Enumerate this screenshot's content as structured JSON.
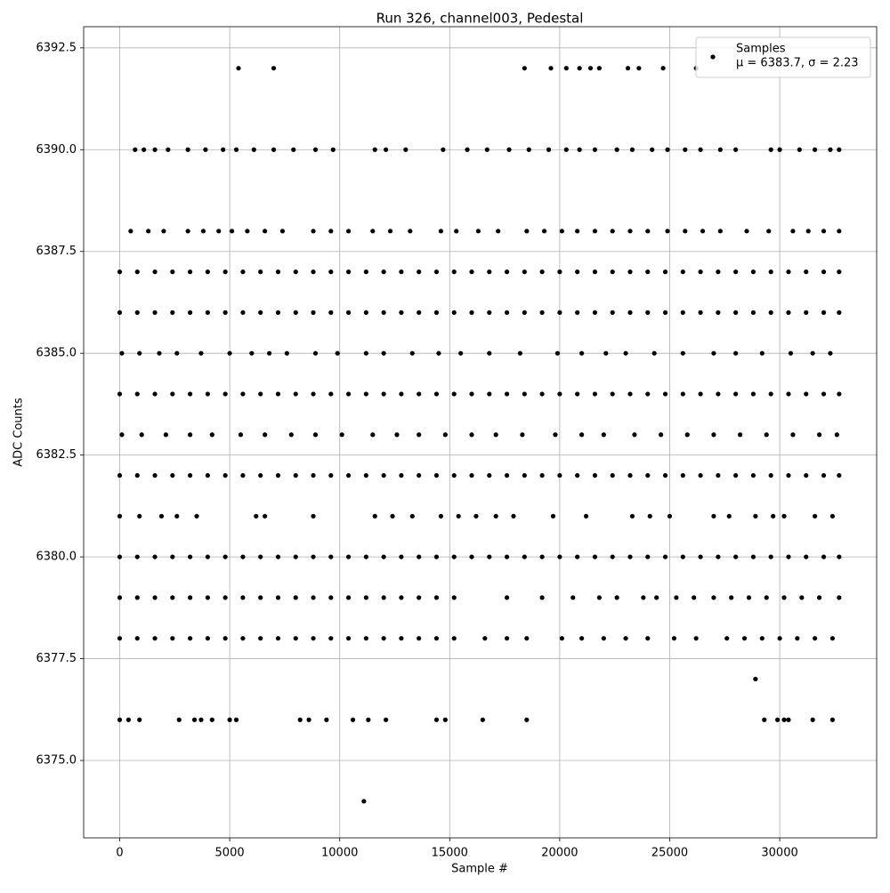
{
  "chart_data": {
    "type": "scatter",
    "title": "Run 326, channel003, Pedestal",
    "x_label": "Sample #",
    "y_label": "ADC Counts",
    "legend_stats": "μ = 6383.7, σ = 2.23",
    "legend_position": "upper right",
    "grid": true,
    "xlim": [
      -1638,
      34406
    ],
    "ylim": [
      6373.1,
      6393.02
    ],
    "xticks": [
      0,
      5000,
      10000,
      15000,
      20000,
      25000,
      30000
    ],
    "yticks": [
      {
        "value": 6375,
        "label": "6375.0"
      },
      6377.5,
      {
        "value": 6380,
        "label": "6380.0"
      },
      6382.5,
      {
        "value": 6385,
        "label": "6385.0"
      },
      6387.5,
      {
        "value": 6390,
        "label": "6390.0"
      },
      6392.5
    ],
    "series": [
      {
        "name": "Samples",
        "color": "#000000",
        "x": [
          5400,
          7000,
          18400,
          19600,
          20300,
          20900,
          21400,
          21800,
          23100,
          23600,
          24700,
          26200,
          700,
          1100,
          1600,
          2200,
          3100,
          3900,
          4700,
          5300,
          6100,
          7000,
          7900,
          8900,
          9700,
          11600,
          12100,
          13000,
          14700,
          15800,
          16700,
          17700,
          18600,
          19500,
          20300,
          20900,
          21600,
          22600,
          23300,
          24200,
          24900,
          25700,
          26400,
          27300,
          28000,
          29600,
          30000,
          30900,
          31600,
          32300,
          32700,
          500,
          1300,
          2000,
          3100,
          3800,
          4500,
          5100,
          5800,
          6600,
          7400,
          8800,
          9600,
          10400,
          11500,
          12300,
          13200,
          14600,
          15300,
          16300,
          17200,
          18500,
          19300,
          20100,
          20800,
          21600,
          22400,
          23200,
          24000,
          24900,
          25700,
          26500,
          27300,
          28500,
          29500,
          30600,
          31300,
          32000,
          32700,
          0,
          800,
          1600,
          2400,
          3200,
          4000,
          4800,
          5600,
          6400,
          7200,
          8000,
          8800,
          9600,
          10400,
          11200,
          12000,
          12800,
          13600,
          14400,
          15200,
          16000,
          16800,
          17600,
          18400,
          19200,
          20000,
          20800,
          21600,
          22400,
          23200,
          24000,
          24800,
          25600,
          26400,
          27200,
          28000,
          28800,
          29600,
          30400,
          31200,
          32000,
          32700,
          0,
          800,
          1600,
          2400,
          3200,
          4000,
          4800,
          5600,
          6400,
          7200,
          8000,
          8800,
          9600,
          10400,
          11200,
          12000,
          12800,
          13600,
          14400,
          15200,
          16000,
          16800,
          17600,
          18400,
          19200,
          20000,
          20800,
          21600,
          22400,
          23200,
          24000,
          24800,
          25600,
          26400,
          27200,
          28000,
          28800,
          29600,
          30400,
          31200,
          32000,
          32700,
          100,
          900,
          1800,
          2600,
          3700,
          5000,
          6000,
          6800,
          7600,
          8900,
          9900,
          11200,
          12000,
          13300,
          14500,
          15500,
          16800,
          18200,
          19900,
          21000,
          22100,
          23000,
          24300,
          25600,
          27000,
          28000,
          29200,
          30500,
          31500,
          32300,
          0,
          800,
          1600,
          2400,
          3200,
          4000,
          4800,
          5600,
          6400,
          7200,
          8000,
          8800,
          9600,
          10400,
          11200,
          12000,
          12800,
          13600,
          14400,
          15200,
          16000,
          16800,
          17600,
          18400,
          19200,
          20000,
          20800,
          21600,
          22400,
          23200,
          24000,
          24800,
          25600,
          26400,
          27200,
          28000,
          28800,
          29600,
          30400,
          31200,
          32000,
          32700,
          100,
          1000,
          2100,
          3200,
          4200,
          5500,
          6600,
          7800,
          8900,
          10100,
          11500,
          12600,
          13600,
          14800,
          16000,
          17100,
          18300,
          19800,
          21000,
          22000,
          23400,
          24600,
          25800,
          27000,
          28200,
          29400,
          30600,
          31800,
          32600,
          0,
          800,
          1600,
          2400,
          3200,
          4000,
          4800,
          5600,
          6400,
          7200,
          8000,
          8800,
          9600,
          10400,
          11200,
          12000,
          12800,
          13600,
          14400,
          15200,
          16000,
          16800,
          17600,
          18400,
          19200,
          20000,
          20800,
          21600,
          22400,
          23200,
          24000,
          24800,
          25600,
          26400,
          27200,
          28000,
          28800,
          29600,
          30400,
          31200,
          32000,
          32700,
          0,
          900,
          1900,
          2600,
          3500,
          6200,
          6600,
          8800,
          11600,
          12400,
          13300,
          14600,
          15400,
          16200,
          17100,
          17900,
          19700,
          21200,
          23300,
          24100,
          25000,
          27000,
          27700,
          28900,
          29700,
          30200,
          31600,
          32400,
          0,
          800,
          1600,
          2400,
          3200,
          4000,
          4800,
          5600,
          6400,
          7200,
          8000,
          8800,
          9600,
          10400,
          11200,
          12000,
          12800,
          13600,
          14400,
          15200,
          16000,
          16800,
          17600,
          18400,
          19200,
          20000,
          20800,
          21600,
          22400,
          23200,
          24000,
          24800,
          25600,
          26400,
          27200,
          28000,
          28800,
          29600,
          30400,
          31200,
          32000,
          32700,
          0,
          800,
          1600,
          2400,
          3200,
          4000,
          4800,
          5600,
          6400,
          7200,
          8000,
          8800,
          9600,
          10400,
          11200,
          12000,
          12800,
          13600,
          14400,
          15200,
          17600,
          19200,
          20600,
          21800,
          22600,
          23800,
          24400,
          25300,
          26100,
          27000,
          27800,
          28600,
          29400,
          30200,
          31000,
          31800,
          32700,
          0,
          800,
          1600,
          2400,
          3200,
          4000,
          4800,
          5600,
          6400,
          7200,
          8000,
          8800,
          9600,
          10400,
          11200,
          12000,
          12800,
          13600,
          14400,
          15200,
          16600,
          17600,
          18500,
          20100,
          21000,
          22000,
          23000,
          24000,
          25200,
          26200,
          27600,
          28400,
          29200,
          30000,
          30800,
          31600,
          32400,
          28900,
          0,
          400,
          900,
          2700,
          3400,
          3700,
          4200,
          5000,
          5300,
          8200,
          8600,
          9400,
          10600,
          11300,
          12100,
          14400,
          14800,
          16500,
          18500,
          29300,
          29900,
          30200,
          30400,
          31500,
          32400,
          11100
        ],
        "values": [
          6392,
          6392,
          6392,
          6392,
          6392,
          6392,
          6392,
          6392,
          6392,
          6392,
          6392,
          6392,
          6390,
          6390,
          6390,
          6390,
          6390,
          6390,
          6390,
          6390,
          6390,
          6390,
          6390,
          6390,
          6390,
          6390,
          6390,
          6390,
          6390,
          6390,
          6390,
          6390,
          6390,
          6390,
          6390,
          6390,
          6390,
          6390,
          6390,
          6390,
          6390,
          6390,
          6390,
          6390,
          6390,
          6390,
          6390,
          6390,
          6390,
          6390,
          6390,
          6388,
          6388,
          6388,
          6388,
          6388,
          6388,
          6388,
          6388,
          6388,
          6388,
          6388,
          6388,
          6388,
          6388,
          6388,
          6388,
          6388,
          6388,
          6388,
          6388,
          6388,
          6388,
          6388,
          6388,
          6388,
          6388,
          6388,
          6388,
          6388,
          6388,
          6388,
          6388,
          6388,
          6388,
          6388,
          6388,
          6388,
          6388,
          6387,
          6387,
          6387,
          6387,
          6387,
          6387,
          6387,
          6387,
          6387,
          6387,
          6387,
          6387,
          6387,
          6387,
          6387,
          6387,
          6387,
          6387,
          6387,
          6387,
          6387,
          6387,
          6387,
          6387,
          6387,
          6387,
          6387,
          6387,
          6387,
          6387,
          6387,
          6387,
          6387,
          6387,
          6387,
          6387,
          6387,
          6387,
          6387,
          6387,
          6387,
          6387,
          6386,
          6386,
          6386,
          6386,
          6386,
          6386,
          6386,
          6386,
          6386,
          6386,
          6386,
          6386,
          6386,
          6386,
          6386,
          6386,
          6386,
          6386,
          6386,
          6386,
          6386,
          6386,
          6386,
          6386,
          6386,
          6386,
          6386,
          6386,
          6386,
          6386,
          6386,
          6386,
          6386,
          6386,
          6386,
          6386,
          6386,
          6386,
          6386,
          6386,
          6386,
          6386,
          6385,
          6385,
          6385,
          6385,
          6385,
          6385,
          6385,
          6385,
          6385,
          6385,
          6385,
          6385,
          6385,
          6385,
          6385,
          6385,
          6385,
          6385,
          6385,
          6385,
          6385,
          6385,
          6385,
          6385,
          6385,
          6385,
          6385,
          6385,
          6385,
          6385,
          6384,
          6384,
          6384,
          6384,
          6384,
          6384,
          6384,
          6384,
          6384,
          6384,
          6384,
          6384,
          6384,
          6384,
          6384,
          6384,
          6384,
          6384,
          6384,
          6384,
          6384,
          6384,
          6384,
          6384,
          6384,
          6384,
          6384,
          6384,
          6384,
          6384,
          6384,
          6384,
          6384,
          6384,
          6384,
          6384,
          6384,
          6384,
          6384,
          6384,
          6384,
          6384,
          6383,
          6383,
          6383,
          6383,
          6383,
          6383,
          6383,
          6383,
          6383,
          6383,
          6383,
          6383,
          6383,
          6383,
          6383,
          6383,
          6383,
          6383,
          6383,
          6383,
          6383,
          6383,
          6383,
          6383,
          6383,
          6383,
          6383,
          6383,
          6383,
          6382,
          6382,
          6382,
          6382,
          6382,
          6382,
          6382,
          6382,
          6382,
          6382,
          6382,
          6382,
          6382,
          6382,
          6382,
          6382,
          6382,
          6382,
          6382,
          6382,
          6382,
          6382,
          6382,
          6382,
          6382,
          6382,
          6382,
          6382,
          6382,
          6382,
          6382,
          6382,
          6382,
          6382,
          6382,
          6382,
          6382,
          6382,
          6382,
          6382,
          6382,
          6382,
          6381,
          6381,
          6381,
          6381,
          6381,
          6381,
          6381,
          6381,
          6381,
          6381,
          6381,
          6381,
          6381,
          6381,
          6381,
          6381,
          6381,
          6381,
          6381,
          6381,
          6381,
          6381,
          6381,
          6381,
          6381,
          6381,
          6381,
          6381,
          6380,
          6380,
          6380,
          6380,
          6380,
          6380,
          6380,
          6380,
          6380,
          6380,
          6380,
          6380,
          6380,
          6380,
          6380,
          6380,
          6380,
          6380,
          6380,
          6380,
          6380,
          6380,
          6380,
          6380,
          6380,
          6380,
          6380,
          6380,
          6380,
          6380,
          6380,
          6380,
          6380,
          6380,
          6380,
          6380,
          6380,
          6380,
          6380,
          6380,
          6380,
          6380,
          6379,
          6379,
          6379,
          6379,
          6379,
          6379,
          6379,
          6379,
          6379,
          6379,
          6379,
          6379,
          6379,
          6379,
          6379,
          6379,
          6379,
          6379,
          6379,
          6379,
          6379,
          6379,
          6379,
          6379,
          6379,
          6379,
          6379,
          6379,
          6379,
          6379,
          6379,
          6379,
          6379,
          6379,
          6379,
          6379,
          6379,
          6378,
          6378,
          6378,
          6378,
          6378,
          6378,
          6378,
          6378,
          6378,
          6378,
          6378,
          6378,
          6378,
          6378,
          6378,
          6378,
          6378,
          6378,
          6378,
          6378,
          6378,
          6378,
          6378,
          6378,
          6378,
          6378,
          6378,
          6378,
          6378,
          6378,
          6378,
          6378,
          6378,
          6378,
          6378,
          6378,
          6378,
          6377,
          6376,
          6376,
          6376,
          6376,
          6376,
          6376,
          6376,
          6376,
          6376,
          6376,
          6376,
          6376,
          6376,
          6376,
          6376,
          6376,
          6376,
          6376,
          6376,
          6376,
          6376,
          6376,
          6376,
          6376,
          6376,
          6374
        ]
      }
    ]
  }
}
